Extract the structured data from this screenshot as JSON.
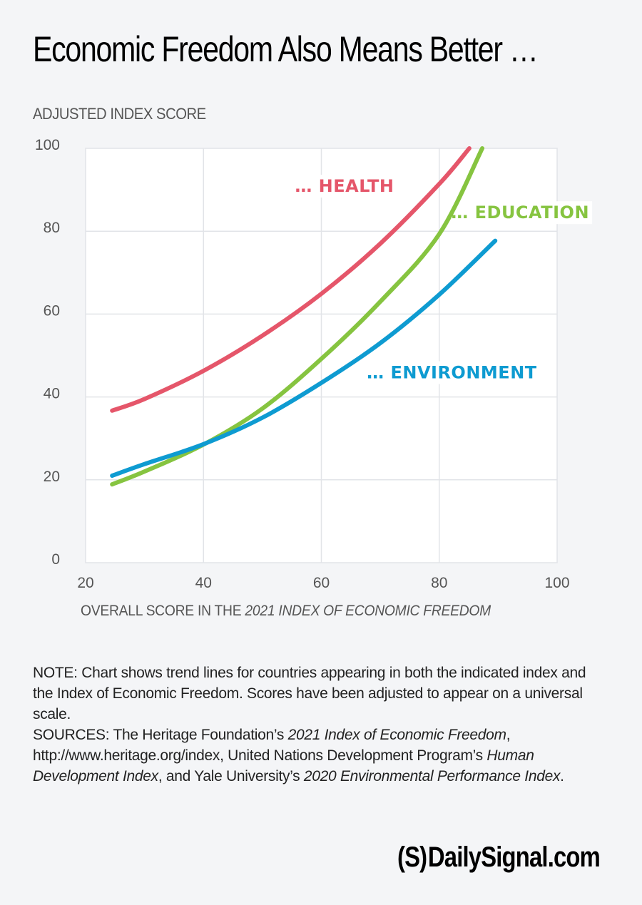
{
  "page": {
    "title": "Economic Freedom Also Means Better …",
    "notes": {
      "note": "NOTE: Chart shows trend lines for countries appearing in both the indicated index and the Index of Economic Freedom. Scores have been adjusted to appear on a universal scale.",
      "sources_prefix": "SOURCES: The Heritage Foundation’s ",
      "sources_italic_1": "2021 Index of Economic Freedom",
      "sources_mid_1": ", http://www.heritage.org/index, United Nations Development Program’s ",
      "sources_italic_2": "Human Development Index",
      "sources_mid_2": ", and Yale University’s ",
      "sources_italic_3": "2020 Environmental Performance Index",
      "sources_suffix": "."
    },
    "logo": {
      "mark": "(S)",
      "text": "DailySignal.com"
    }
  },
  "chart_data": {
    "type": "line",
    "title": "Economic Freedom Also Means Better …",
    "ylabel": "ADJUSTED INDEX SCORE",
    "xlabel_prefix": "OVERALL SCORE IN THE ",
    "xlabel_italic": "2021 INDEX OF ECONOMIC FREEDOM",
    "xlim": [
      20,
      100
    ],
    "ylim": [
      0,
      100
    ],
    "xticks": [
      "20",
      "40",
      "60",
      "80",
      "100"
    ],
    "yticks": [
      "0",
      "20",
      "40",
      "60",
      "80",
      "100"
    ],
    "grid": true,
    "legend": "inline-labels",
    "series": [
      {
        "name": "HEALTH",
        "label": "… HEALTH",
        "color": "#E5566A",
        "x": [
          24.5,
          30,
          40,
          50,
          60,
          70,
          80,
          85.1
        ],
        "y": [
          36.7,
          39.5,
          46.3,
          54.8,
          64.9,
          77.0,
          91.4,
          100
        ]
      },
      {
        "name": "EDUCATION",
        "label": "… EDUCATION",
        "color": "#86C440",
        "x": [
          24.5,
          30,
          40,
          50,
          60,
          70,
          80,
          87.3
        ],
        "y": [
          18.9,
          22.0,
          28.5,
          37.2,
          49.2,
          63.0,
          79.3,
          100
        ]
      },
      {
        "name": "ENVIRONMENT",
        "label": "… ENVIRONMENT",
        "color": "#0E9BD1",
        "x": [
          24.5,
          30,
          40,
          50,
          60,
          70,
          80,
          89.5
        ],
        "y": [
          21.0,
          23.8,
          28.6,
          35.0,
          43.4,
          53.0,
          64.7,
          77.7
        ]
      }
    ]
  }
}
